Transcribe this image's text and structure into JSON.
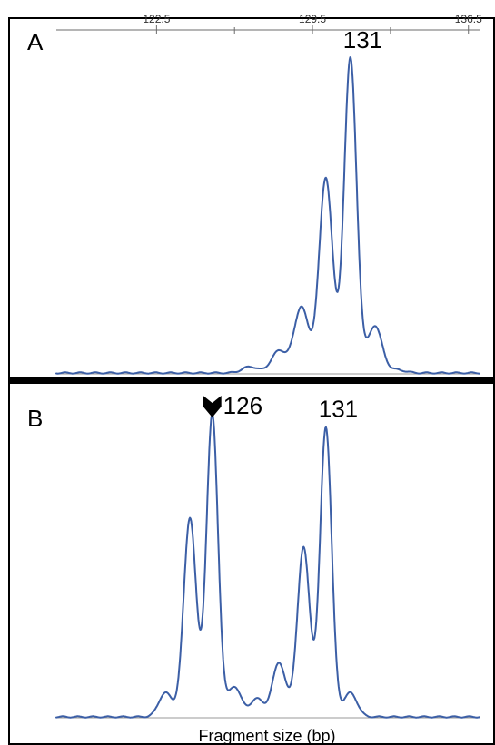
{
  "chart_data": {
    "type": "line",
    "xlabel": "Fragment size (bp)",
    "top_axis": {
      "ticks": [
        122.5,
        129.5,
        136.5
      ],
      "minor_ticks": [
        126.0,
        133.0
      ],
      "xlim": [
        118.0,
        137.0
      ]
    },
    "trace_color": "#3c5fa6",
    "panels": [
      {
        "letter": "A",
        "peaks": [
          {
            "x": 126.7,
            "y": 0.02,
            "w": 0.35
          },
          {
            "x": 128.0,
            "y": 0.07,
            "w": 0.35
          },
          {
            "x": 129.0,
            "y": 0.21,
            "w": 0.32
          },
          {
            "x": 130.1,
            "y": 0.62,
            "w": 0.3
          },
          {
            "x": 131.2,
            "y": 1.0,
            "w": 0.28
          },
          {
            "x": 132.3,
            "y": 0.15,
            "w": 0.32
          },
          {
            "x": 133.3,
            "y": 0.01,
            "w": 0.35
          }
        ],
        "labels": [
          {
            "text": "131",
            "x": 131.2,
            "y": 1.0
          }
        ]
      },
      {
        "letter": "B",
        "peaks": [
          {
            "x": 122.9,
            "y": 0.08,
            "w": 0.3
          },
          {
            "x": 124.0,
            "y": 0.66,
            "w": 0.28
          },
          {
            "x": 125.0,
            "y": 1.0,
            "w": 0.26
          },
          {
            "x": 126.0,
            "y": 0.1,
            "w": 0.3
          },
          {
            "x": 127.0,
            "y": 0.06,
            "w": 0.3
          },
          {
            "x": 128.0,
            "y": 0.18,
            "w": 0.3
          },
          {
            "x": 129.1,
            "y": 0.56,
            "w": 0.28
          },
          {
            "x": 130.1,
            "y": 0.96,
            "w": 0.26
          },
          {
            "x": 131.2,
            "y": 0.08,
            "w": 0.3
          }
        ],
        "labels": [
          {
            "text": "126",
            "x": 125.0,
            "y": 1.0,
            "marker": "arrowhead"
          },
          {
            "text": "131",
            "x": 130.1,
            "y": 0.96
          }
        ]
      }
    ]
  }
}
